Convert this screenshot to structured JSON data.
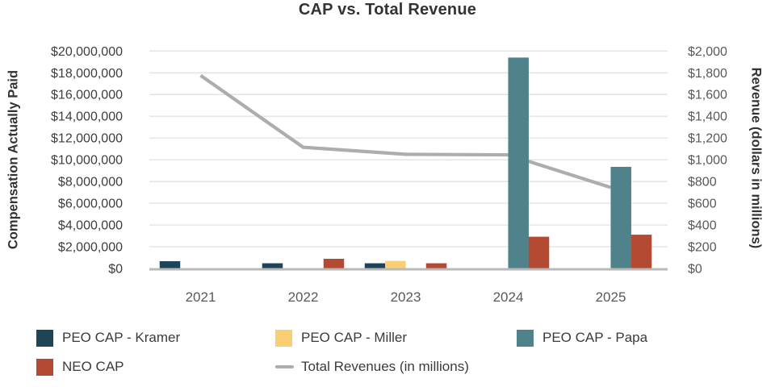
{
  "chart": {
    "title": "CAP vs. Total Revenue",
    "left_axis_title": "Compensation Actually Paid",
    "right_axis_title": "Revenue (dollars in millions)"
  },
  "chart_data": {
    "type": "bar+line combo (grouped bars on left axis, line on right axis)",
    "title": "CAP vs. Total Revenue",
    "categories": [
      "2021",
      "2022",
      "2023",
      "2024",
      "2025"
    ],
    "bar_series": [
      {
        "name": "PEO CAP - Kramer",
        "axis": "left",
        "color": "#1e4458",
        "values": [
          670000,
          480000,
          480000,
          null,
          null
        ]
      },
      {
        "name": "PEO CAP - Miller",
        "axis": "left",
        "color": "#fbce74",
        "values": [
          null,
          null,
          700000,
          null,
          null
        ]
      },
      {
        "name": "PEO CAP - Papa",
        "axis": "left",
        "color": "#4f828b",
        "values": [
          null,
          null,
          null,
          19400000,
          9350000
        ]
      },
      {
        "name": "NEO CAP",
        "axis": "left",
        "color": "#b54a32",
        "values": [
          null,
          890000,
          480000,
          2920000,
          3110000
        ]
      }
    ],
    "line_series": [
      {
        "name": "Total Revenues (in millions)",
        "axis": "right",
        "color": "#adadad",
        "values": [
          1775,
          1115,
          1050,
          1045,
          745
        ]
      }
    ],
    "left_axis": {
      "title": "Compensation Actually Paid",
      "min": 0,
      "max": 20000000,
      "tick_step": 2000000,
      "tick_labels": [
        "$0",
        "$2,000,000",
        "$4,000,000",
        "$6,000,000",
        "$8,000,000",
        "$10,000,000",
        "$12,000,000",
        "$14,000,000",
        "$16,000,000",
        "$18,000,000",
        "$20,000,000"
      ]
    },
    "right_axis": {
      "title": "Revenue (dollars in millions)",
      "min": 0,
      "max": 2000,
      "tick_step": 200,
      "tick_labels": [
        "$0",
        "$200",
        "$400",
        "$600",
        "$800",
        "$1,000",
        "$1,200",
        "$1,400",
        "$1,600",
        "$1,800",
        "$2,000"
      ]
    },
    "grid": true,
    "legend_position": "bottom"
  },
  "legend": {
    "items": [
      {
        "label": "PEO CAP - Kramer",
        "swatch": "square",
        "color": "#1e4458"
      },
      {
        "label": "PEO CAP - Miller",
        "swatch": "square",
        "color": "#fbce74"
      },
      {
        "label": "PEO CAP - Papa",
        "swatch": "square",
        "color": "#4f828b"
      },
      {
        "label": "NEO CAP",
        "swatch": "square",
        "color": "#b54a32"
      },
      {
        "label": "Total Revenues (in millions)",
        "swatch": "line",
        "color": "#adadad"
      }
    ]
  },
  "colors": {
    "background": "#ffffff",
    "title_text": "#333333",
    "axis_title_text": "#333333",
    "left_tick_text": "#3d3d3d",
    "right_tick_text": "#595959",
    "x_tick_text": "#595959",
    "gridline": "#e3e3e3",
    "axis_line": "#b9b9b9",
    "revenue_line": "#adadad"
  }
}
